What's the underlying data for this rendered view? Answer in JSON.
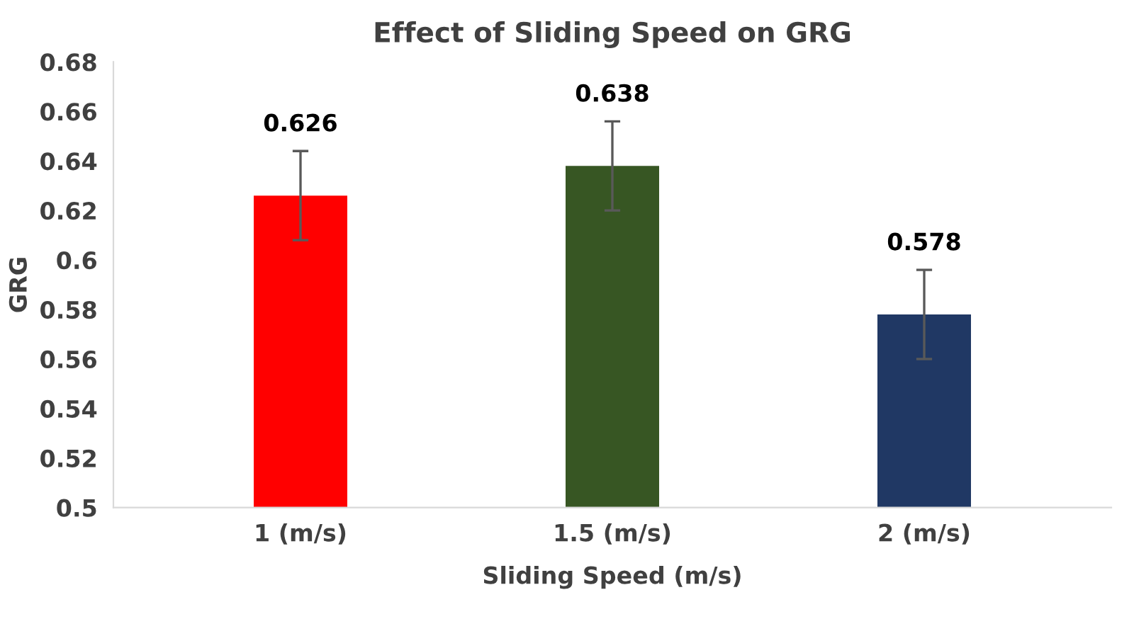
{
  "chart_data": {
    "type": "bar",
    "title": "Effect of Sliding Speed on GRG",
    "xlabel": "Sliding Speed (m/s)",
    "ylabel": "GRG",
    "categories": [
      "1 (m/s)",
      "1.5 (m/s)",
      "2 (m/s)"
    ],
    "values": [
      0.626,
      0.638,
      0.578
    ],
    "colors": [
      "#ff0000",
      "#375623",
      "#203864"
    ],
    "errors": [
      0.018,
      0.018,
      0.018
    ],
    "data_labels": true,
    "ylim": [
      0.5,
      0.68
    ],
    "yticks": [
      0.5,
      0.52,
      0.54,
      0.56,
      0.58,
      0.6,
      0.62,
      0.64,
      0.66,
      0.68
    ],
    "grid": false
  }
}
